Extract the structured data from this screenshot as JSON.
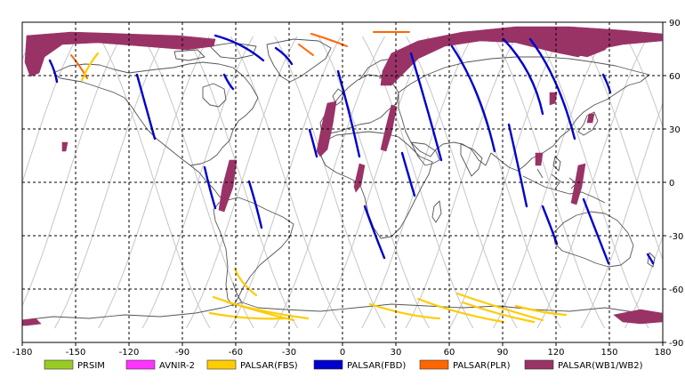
{
  "map": {
    "x_ticks": [
      "-180",
      "-150",
      "-120",
      "-90",
      "-60",
      "-30",
      "0",
      "30",
      "60",
      "90",
      "120",
      "150",
      "180"
    ],
    "y_ticks": [
      "90",
      "60",
      "30",
      "0",
      "-30",
      "-60",
      "-90"
    ],
    "x_range": [
      -180,
      180
    ],
    "y_range": [
      -90,
      90
    ],
    "grid": true,
    "grid_style": "dashed",
    "coastline_color": "#555555",
    "orbit_track_color": "#c6c6c6"
  },
  "legend": {
    "items": [
      {
        "label": "PRSIM",
        "color": "#99cc22"
      },
      {
        "label": "AVNIR-2",
        "color": "#ff33ff"
      },
      {
        "label": "PALSAR(FBS)",
        "color": "#ffcc00"
      },
      {
        "label": "PALSAR(FBD)",
        "color": "#0000cc"
      },
      {
        "label": "PALSAR(PLR)",
        "color": "#ff6600"
      },
      {
        "label": "PALSAR(WB1/WB2)",
        "color": "#993366"
      }
    ]
  }
}
